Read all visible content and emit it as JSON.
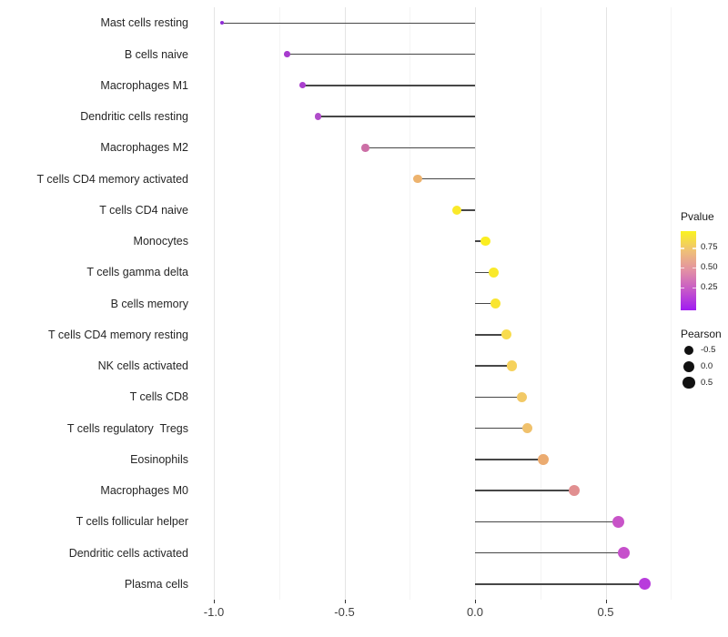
{
  "chart_data": {
    "type": "scatter",
    "subtype": "lollipop",
    "orientation": "horizontal",
    "title": "",
    "xlabel": "",
    "ylabel": "",
    "categories": [
      "Mast cells resting",
      "B cells naive",
      "Macrophages M1",
      "Dendritic cells resting",
      "Macrophages M2",
      "T cells CD4 memory activated",
      "T cells CD4 naive",
      "Monocytes",
      "T cells gamma delta",
      "B cells memory",
      "T cells CD4 memory resting",
      "NK cells activated",
      "T cells CD8",
      "T cells regulatory  Tregs",
      "Eosinophils",
      "Macrophages M0",
      "T cells follicular helper",
      "Dendritic cells activated",
      "Plasma cells"
    ],
    "series": [
      {
        "name": "Pearson correlation",
        "values": [
          -0.97,
          -0.72,
          -0.66,
          -0.6,
          -0.42,
          -0.22,
          -0.07,
          0.04,
          0.07,
          0.08,
          0.12,
          0.14,
          0.18,
          0.2,
          0.26,
          0.38,
          0.55,
          0.57,
          0.65
        ]
      }
    ],
    "point_colors": [
      "#8F2BD6",
      "#A73BCE",
      "#AA3FCE",
      "#B04CCA",
      "#CC6FA6",
      "#EDB36E",
      "#FAE92A",
      "#FBEE21",
      "#F9E92B",
      "#F9E531",
      "#F8DC4E",
      "#F6D25C",
      "#F2C966",
      "#F0C16C",
      "#EBAB70",
      "#E18F90",
      "#C854C8",
      "#C650CB",
      "#B83CDC"
    ],
    "xlim": [
      -1.15,
      0.8
    ],
    "x_ticks": {
      "labels": [
        "-1.0",
        "-0.5",
        "0.0",
        "0.5"
      ],
      "values": [
        -1.0,
        -0.5,
        0.0,
        0.5
      ]
    },
    "x_minor_values": [
      -0.75,
      -0.25,
      0.25,
      0.75
    ],
    "grid": "vertical-major-and-minor",
    "legend_position": "right",
    "baseline": 0
  },
  "legends": {
    "pvalue": {
      "title": "Pvalue",
      "tick_labels": [
        "0.75",
        "0.50",
        "0.25"
      ],
      "gradient_stops": [
        "#FAF31F",
        "#EFC077",
        "#E28FA5",
        "#C556CA",
        "#A01BF2"
      ]
    },
    "pearson": {
      "title": "Pearson",
      "item_labels": [
        "-0.5",
        "0.0",
        "0.5"
      ]
    }
  },
  "colors": {
    "background": "#ffffff",
    "stem": "#474747",
    "grid_major": "#e4e4e4",
    "grid_minor": "#f4f4f4",
    "y_label_text": "#262626",
    "x_label_text": "#404040",
    "legend_dot": "#111111"
  }
}
